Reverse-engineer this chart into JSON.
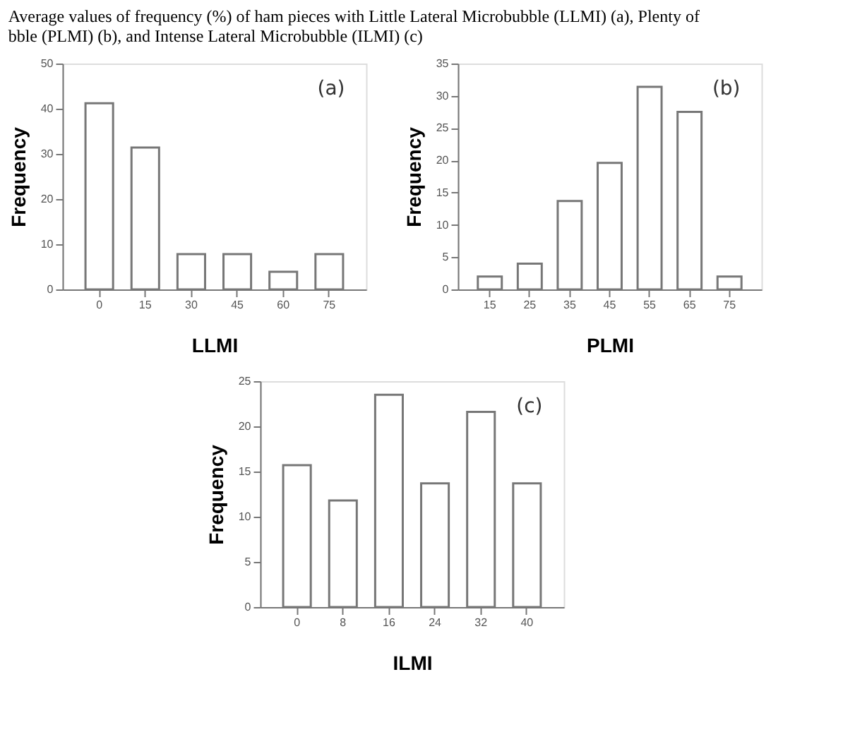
{
  "chart_data": [
    {
      "type": "bar",
      "title": "Average values of frequency (%) of ham pieces with Little Lateral Microbubble (LLMI) (a), Plenty of\nbble (PLMI) (b), and Intense Lateral Microbubble (ILMI) (c)",
      "xlabel": "LLMI",
      "ylabel": "Frequency",
      "annotations": [
        "(a)"
      ],
      "categories": [
        "0",
        "15",
        "30",
        "45",
        "60",
        "75"
      ],
      "values": [
        41.2,
        31.4,
        7.8,
        7.8,
        3.9,
        7.8
      ],
      "color": "#ffffff",
      "ylim": [
        0,
        50
      ],
      "yticks": [
        0,
        10,
        20,
        30,
        40,
        50
      ],
      "grid": false,
      "legend": false
    },
    {
      "type": "bar",
      "xlabel": "PLMI",
      "ylabel": "Frequency",
      "annotations": [
        "(b)"
      ],
      "categories": [
        "15",
        "25",
        "35",
        "45",
        "55",
        "65",
        "75"
      ],
      "values": [
        2,
        4,
        13.7,
        19.6,
        31.4,
        27.5,
        2
      ],
      "color": "#ffffff",
      "ylim": [
        0,
        35
      ],
      "yticks": [
        0,
        5,
        10,
        15,
        20,
        25,
        30,
        35
      ],
      "grid": false,
      "legend": false
    },
    {
      "type": "bar",
      "xlabel": "ILMI",
      "ylabel": "Frequency",
      "annotations": [
        "(c)"
      ],
      "categories": [
        "0",
        "8",
        "16",
        "24",
        "32",
        "40"
      ],
      "values": [
        15.7,
        11.8,
        23.5,
        13.7,
        21.6,
        13.7
      ],
      "color": "#ffffff",
      "ylim": [
        0,
        25
      ],
      "yticks": [
        0,
        5,
        10,
        15,
        20,
        25
      ],
      "grid": false,
      "legend": false
    }
  ]
}
